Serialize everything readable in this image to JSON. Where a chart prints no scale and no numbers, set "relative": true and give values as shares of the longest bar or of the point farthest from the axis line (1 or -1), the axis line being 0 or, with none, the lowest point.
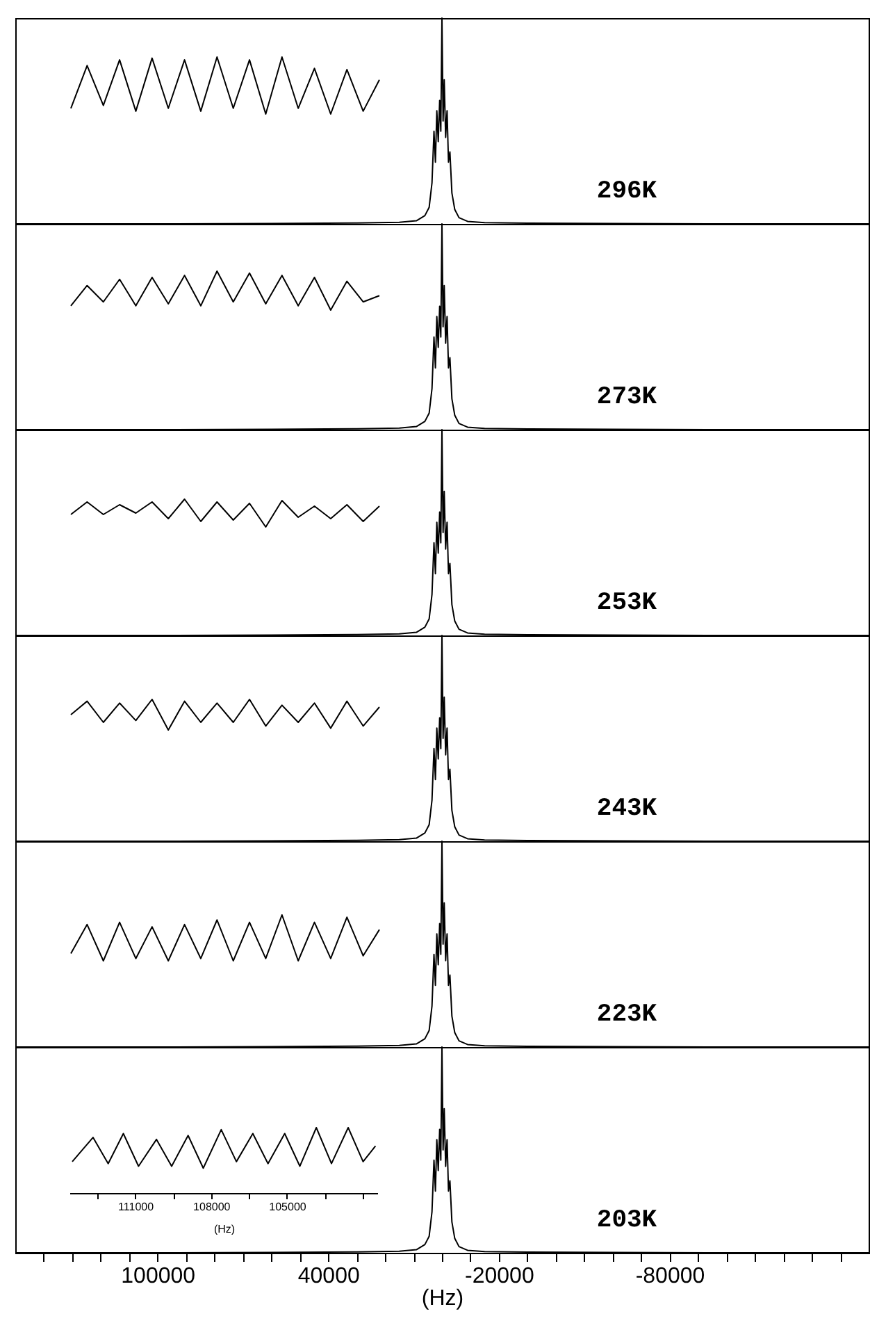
{
  "chart_data": [
    {
      "type": "line",
      "relative": true,
      "color": "#000000",
      "annotations": [
        "296K"
      ],
      "xlim": [
        150000,
        -150000
      ],
      "tick_labels": false,
      "x": [
        150000,
        100000,
        60000,
        30000,
        15000,
        9000,
        6000,
        4500,
        3500,
        2800,
        2300,
        1800,
        1300,
        800,
        400,
        0,
        -400,
        -800,
        -1300,
        -1800,
        -2300,
        -2800,
        -3500,
        -4500,
        -6000,
        -9000,
        -15000,
        -30000,
        -60000,
        -100000,
        -150000
      ],
      "values": [
        0,
        0,
        0.002,
        0.004,
        0.008,
        0.015,
        0.04,
        0.08,
        0.2,
        0.45,
        0.3,
        0.55,
        0.4,
        0.6,
        0.45,
        1.0,
        0.5,
        0.7,
        0.42,
        0.55,
        0.3,
        0.35,
        0.15,
        0.07,
        0.03,
        0.012,
        0.006,
        0.003,
        0.002,
        0,
        0
      ]
    },
    {
      "type": "line",
      "relative": true,
      "color": "#000000",
      "tick_labels": false,
      "categories": [
        null,
        null,
        null,
        null,
        null,
        null,
        null,
        null,
        null,
        null,
        null,
        null,
        null,
        null,
        null,
        null,
        null,
        null,
        null,
        null
      ],
      "values": [
        0.1,
        0.85,
        0.15,
        0.95,
        0.05,
        0.98,
        0.1,
        0.95,
        0.05,
        1.0,
        0.1,
        0.95,
        0,
        1.0,
        0.1,
        0.8,
        0,
        0.78,
        0.05,
        0.6
      ]
    },
    {
      "type": "line",
      "relative": true,
      "color": "#000000",
      "annotations": [
        "273K"
      ],
      "xlim": [
        150000,
        -150000
      ],
      "tick_labels": false,
      "x": [
        150000,
        100000,
        60000,
        30000,
        15000,
        9000,
        6000,
        4500,
        3500,
        2800,
        2300,
        1800,
        1300,
        800,
        400,
        0,
        -400,
        -800,
        -1300,
        -1800,
        -2300,
        -2800,
        -3500,
        -4500,
        -6000,
        -9000,
        -15000,
        -30000,
        -60000,
        -100000,
        -150000
      ],
      "values": [
        0,
        0,
        0.002,
        0.004,
        0.008,
        0.015,
        0.04,
        0.08,
        0.2,
        0.45,
        0.3,
        0.55,
        0.4,
        0.6,
        0.45,
        1.0,
        0.5,
        0.7,
        0.42,
        0.55,
        0.3,
        0.35,
        0.15,
        0.07,
        0.03,
        0.012,
        0.006,
        0.003,
        0.002,
        0,
        0
      ]
    },
    {
      "type": "line",
      "relative": true,
      "color": "#000000",
      "tick_labels": false,
      "categories": [
        null,
        null,
        null,
        null,
        null,
        null,
        null,
        null,
        null,
        null,
        null,
        null,
        null,
        null,
        null,
        null,
        null,
        null,
        null,
        null
      ],
      "values": [
        0.11,
        0.63,
        0.21,
        0.79,
        0.11,
        0.84,
        0.16,
        0.89,
        0.11,
        1,
        0.21,
        0.95,
        0.16,
        0.89,
        0.11,
        0.84,
        0,
        0.74,
        0.21,
        0.37
      ]
    },
    {
      "type": "line",
      "relative": true,
      "color": "#000000",
      "annotations": [
        "253K"
      ],
      "xlim": [
        150000,
        -150000
      ],
      "tick_labels": false,
      "x": [
        150000,
        100000,
        60000,
        30000,
        15000,
        9000,
        6000,
        4500,
        3500,
        2800,
        2300,
        1800,
        1300,
        800,
        400,
        0,
        -400,
        -800,
        -1300,
        -1800,
        -2300,
        -2800,
        -3500,
        -4500,
        -6000,
        -9000,
        -15000,
        -30000,
        -60000,
        -100000,
        -150000
      ],
      "values": [
        0,
        0,
        0.002,
        0.004,
        0.008,
        0.015,
        0.04,
        0.08,
        0.2,
        0.45,
        0.3,
        0.55,
        0.4,
        0.6,
        0.45,
        1.0,
        0.5,
        0.7,
        0.42,
        0.55,
        0.3,
        0.35,
        0.15,
        0.07,
        0.03,
        0.012,
        0.006,
        0.003,
        0.002,
        0,
        0
      ]
    },
    {
      "type": "line",
      "relative": true,
      "color": "#000000",
      "tick_labels": false,
      "categories": [
        null,
        null,
        null,
        null,
        null,
        null,
        null,
        null,
        null,
        null,
        null,
        null,
        null,
        null,
        null,
        null,
        null,
        null,
        null,
        null
      ],
      "values": [
        0.45,
        0.9,
        0.45,
        0.8,
        0.5,
        0.9,
        0.3,
        1.0,
        0.2,
        0.9,
        0.25,
        0.85,
        0,
        0.95,
        0.35,
        0.75,
        0.3,
        0.8,
        0.2,
        0.75
      ]
    },
    {
      "type": "line",
      "relative": true,
      "color": "#000000",
      "annotations": [
        "243K"
      ],
      "xlim": [
        150000,
        -150000
      ],
      "tick_labels": false,
      "x": [
        150000,
        100000,
        60000,
        30000,
        15000,
        9000,
        6000,
        4500,
        3500,
        2800,
        2300,
        1800,
        1300,
        800,
        400,
        0,
        -400,
        -800,
        -1300,
        -1800,
        -2300,
        -2800,
        -3500,
        -4500,
        -6000,
        -9000,
        -15000,
        -30000,
        -60000,
        -100000,
        -150000
      ],
      "values": [
        0,
        0,
        0.002,
        0.004,
        0.008,
        0.015,
        0.04,
        0.08,
        0.2,
        0.45,
        0.3,
        0.55,
        0.4,
        0.6,
        0.45,
        1.0,
        0.5,
        0.7,
        0.42,
        0.55,
        0.3,
        0.35,
        0.15,
        0.07,
        0.03,
        0.012,
        0.006,
        0.003,
        0.002,
        0,
        0
      ]
    },
    {
      "type": "line",
      "relative": true,
      "color": "#000000",
      "tick_labels": false,
      "categories": [
        null,
        null,
        null,
        null,
        null,
        null,
        null,
        null,
        null,
        null,
        null,
        null,
        null,
        null,
        null,
        null,
        null,
        null,
        null,
        null
      ],
      "values": [
        0.5,
        0.94,
        0.25,
        0.88,
        0.31,
        1,
        0,
        0.94,
        0.25,
        0.88,
        0.25,
        1,
        0.13,
        0.81,
        0.25,
        0.88,
        0.06,
        0.94,
        0.13,
        0.75
      ]
    },
    {
      "type": "line",
      "relative": true,
      "color": "#000000",
      "annotations": [
        "223K"
      ],
      "xlim": [
        150000,
        -150000
      ],
      "tick_labels": false,
      "x": [
        150000,
        100000,
        60000,
        30000,
        15000,
        9000,
        6000,
        4500,
        3500,
        2800,
        2300,
        1800,
        1300,
        800,
        400,
        0,
        -400,
        -800,
        -1300,
        -1800,
        -2300,
        -2800,
        -3500,
        -4500,
        -6000,
        -9000,
        -15000,
        -30000,
        -60000,
        -100000,
        -150000
      ],
      "values": [
        0,
        0,
        0.002,
        0.004,
        0.008,
        0.015,
        0.04,
        0.08,
        0.2,
        0.45,
        0.3,
        0.55,
        0.4,
        0.6,
        0.45,
        1.0,
        0.5,
        0.7,
        0.42,
        0.55,
        0.3,
        0.35,
        0.15,
        0.07,
        0.03,
        0.012,
        0.006,
        0.003,
        0.002,
        0,
        0
      ]
    },
    {
      "type": "line",
      "relative": true,
      "color": "#000000",
      "tick_labels": false,
      "categories": [
        null,
        null,
        null,
        null,
        null,
        null,
        null,
        null,
        null,
        null,
        null,
        null,
        null,
        null,
        null,
        null,
        null,
        null,
        null,
        null
      ],
      "values": [
        0.16,
        0.79,
        0,
        0.84,
        0.05,
        0.74,
        0,
        0.79,
        0.05,
        0.89,
        0,
        0.84,
        0.05,
        1,
        0,
        0.84,
        0.05,
        0.95,
        0.11,
        0.68
      ]
    },
    {
      "type": "line",
      "relative": true,
      "color": "#000000",
      "annotations": [
        "203K"
      ],
      "xlim": [
        150000,
        -150000
      ],
      "xlabel": "(Hz)",
      "xticks": [
        {
          "value": 140000,
          "label": null
        },
        {
          "value": 130000,
          "label": null
        },
        {
          "value": 120000,
          "label": null
        },
        {
          "value": 110000,
          "label": null
        },
        100000,
        {
          "value": 90000,
          "label": null
        },
        {
          "value": 80000,
          "label": null
        },
        {
          "value": 70000,
          "label": null
        },
        {
          "value": 60000,
          "label": null
        },
        {
          "value": 50000,
          "label": null
        },
        40000,
        {
          "value": 30000,
          "label": null
        },
        {
          "value": 20000,
          "label": null
        },
        {
          "value": 10000,
          "label": null
        },
        {
          "value": 0,
          "label": null
        },
        {
          "value": -10000,
          "label": null
        },
        -20000,
        {
          "value": -30000,
          "label": null
        },
        {
          "value": -40000,
          "label": null
        },
        {
          "value": -50000,
          "label": null
        },
        {
          "value": -60000,
          "label": null
        },
        {
          "value": -70000,
          "label": null
        },
        -80000,
        {
          "value": -90000,
          "label": null
        },
        {
          "value": -100000,
          "label": null
        },
        {
          "value": -110000,
          "label": null
        },
        {
          "value": -120000,
          "label": null
        },
        {
          "value": -130000,
          "label": null
        },
        {
          "value": -140000,
          "label": null
        }
      ],
      "x": [
        150000,
        100000,
        60000,
        30000,
        15000,
        9000,
        6000,
        4500,
        3500,
        2800,
        2300,
        1800,
        1300,
        800,
        400,
        0,
        -400,
        -800,
        -1300,
        -1800,
        -2300,
        -2800,
        -3500,
        -4500,
        -6000,
        -9000,
        -15000,
        -30000,
        -60000,
        -100000,
        -150000
      ],
      "values": [
        0,
        0,
        0.002,
        0.004,
        0.008,
        0.015,
        0.04,
        0.08,
        0.2,
        0.45,
        0.3,
        0.55,
        0.4,
        0.6,
        0.45,
        1.0,
        0.5,
        0.7,
        0.42,
        0.55,
        0.3,
        0.35,
        0.15,
        0.07,
        0.03,
        0.012,
        0.006,
        0.003,
        0.002,
        0,
        0
      ]
    },
    {
      "type": "line",
      "relative": true,
      "color": "#000000",
      "xlim": [
        113600,
        101400
      ],
      "xlabel": "(Hz)",
      "tick_labels": "x",
      "xticks": [
        {
          "value": 112500,
          "label": null
        },
        111000,
        {
          "value": 109500,
          "label": null
        },
        108000,
        {
          "value": 106500,
          "label": null
        },
        105000,
        {
          "value": 103500,
          "label": null
        },
        {
          "value": 102000,
          "label": null
        }
      ],
      "x": [
        113490,
        112670,
        112070,
        111470,
        110870,
        110160,
        109560,
        108910,
        108310,
        107600,
        107000,
        106350,
        105750,
        105090,
        104490,
        103840,
        103240,
        102580,
        101990,
        101500
      ],
      "values": [
        0.48,
        0.85,
        0.45,
        0.91,
        0.41,
        0.82,
        0.41,
        0.88,
        0.38,
        0.97,
        0.48,
        0.91,
        0.45,
        0.91,
        0.41,
        1,
        0.45,
        1,
        0.48,
        0.72
      ]
    }
  ]
}
